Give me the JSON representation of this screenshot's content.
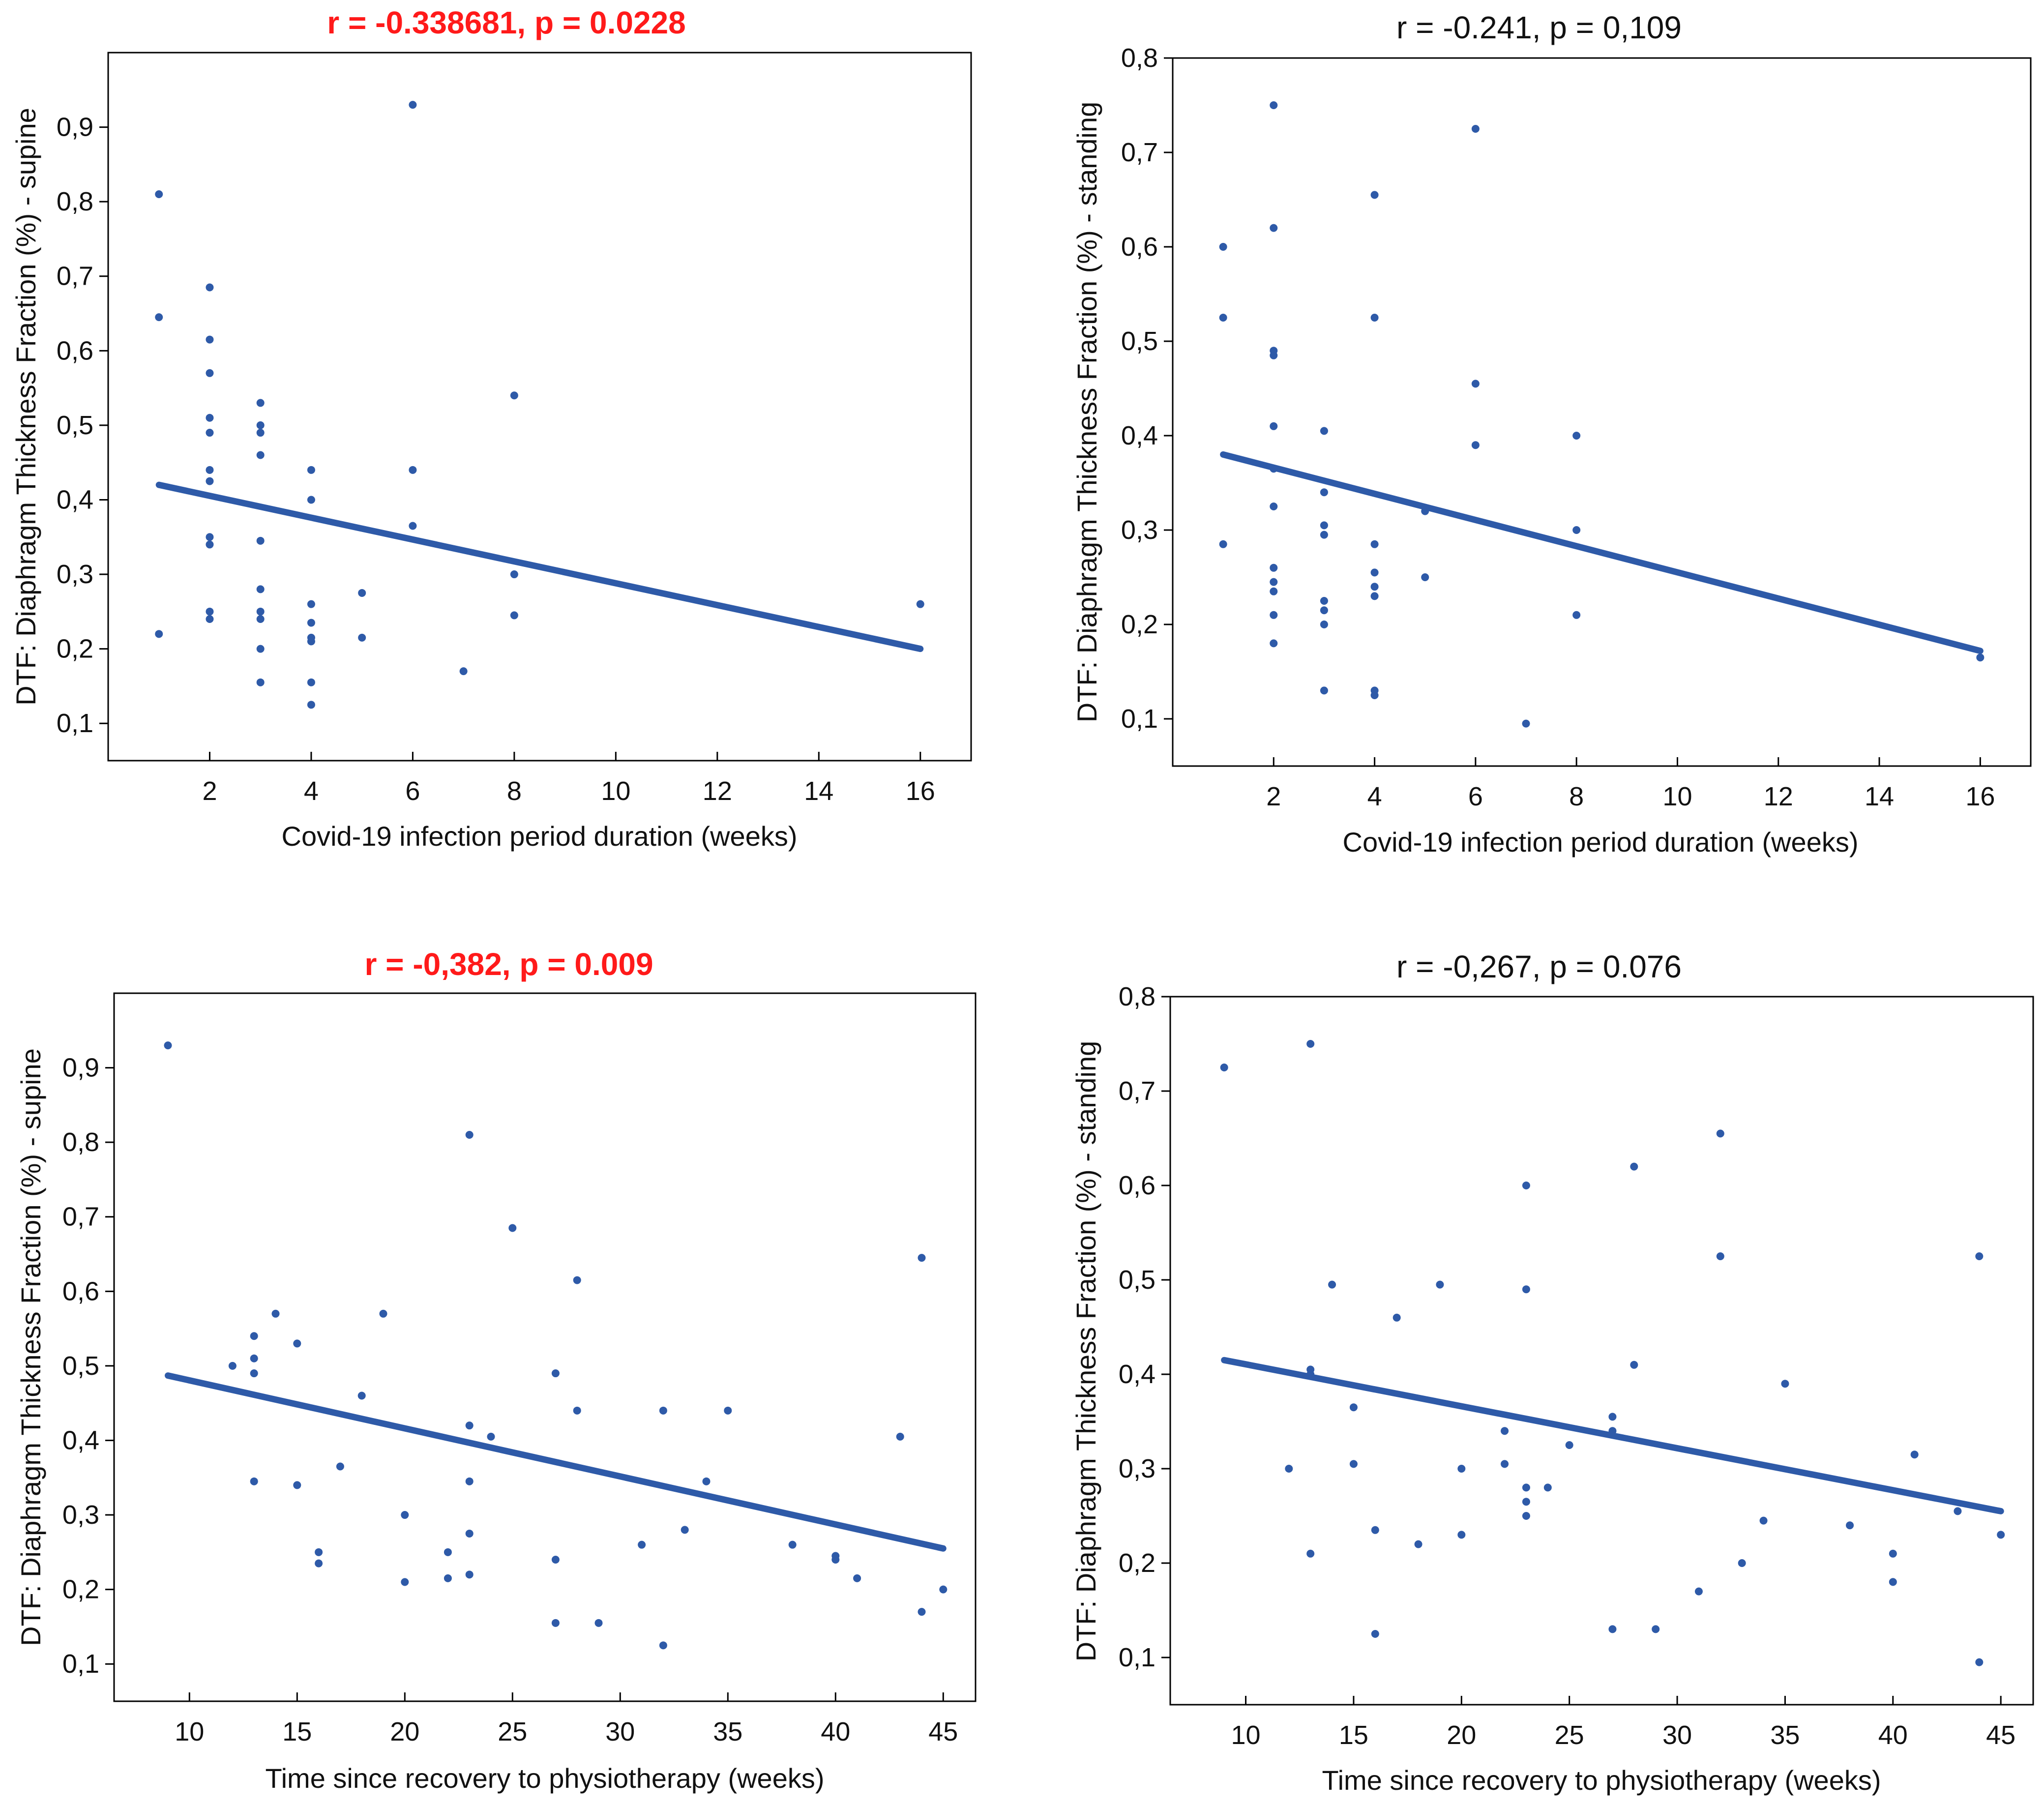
{
  "colors": {
    "points": "#2e5aa8",
    "regression": "#2e5aa8",
    "significant_title": "#ff1a1a",
    "normal_title": "#111111",
    "axes": "#000000"
  },
  "chart_data": [
    {
      "type": "scatter",
      "title": "r = -0.338681, p = 0.0228",
      "title_color": "#ff1a1a",
      "title_bold": true,
      "xlabel": "Covid-19 infection period duration (weeks)",
      "ylabel": "DTF: Diaphragm Thickness Fraction (%) - supine",
      "xlim": [
        0,
        17
      ],
      "ylim": [
        0.05,
        1.0
      ],
      "xticks": [
        2,
        4,
        6,
        8,
        10,
        12,
        14,
        16
      ],
      "xtick_labels": [
        "2",
        "4",
        "6",
        "8",
        "10",
        "12",
        "14",
        "16"
      ],
      "yticks": [
        0.1,
        0.2,
        0.3,
        0.4,
        0.5,
        0.6,
        0.7,
        0.8,
        0.9
      ],
      "ytick_labels": [
        "0,1",
        "0,2",
        "0,3",
        "0,4",
        "0,5",
        "0,6",
        "0,7",
        "0,8",
        "0,9"
      ],
      "points": [
        [
          1,
          0.81
        ],
        [
          1,
          0.645
        ],
        [
          1,
          0.22
        ],
        [
          2,
          0.685
        ],
        [
          2,
          0.615
        ],
        [
          2,
          0.57
        ],
        [
          2,
          0.51
        ],
        [
          2,
          0.49
        ],
        [
          2,
          0.44
        ],
        [
          2,
          0.425
        ],
        [
          2,
          0.35
        ],
        [
          2,
          0.34
        ],
        [
          2,
          0.25
        ],
        [
          2,
          0.24
        ],
        [
          3,
          0.53
        ],
        [
          3,
          0.5
        ],
        [
          3,
          0.49
        ],
        [
          3,
          0.46
        ],
        [
          3,
          0.345
        ],
        [
          3,
          0.28
        ],
        [
          3,
          0.25
        ],
        [
          3,
          0.24
        ],
        [
          3,
          0.2
        ],
        [
          3,
          0.155
        ],
        [
          4,
          0.44
        ],
        [
          4,
          0.4
        ],
        [
          4,
          0.26
        ],
        [
          4,
          0.235
        ],
        [
          4,
          0.215
        ],
        [
          4,
          0.21
        ],
        [
          4,
          0.155
        ],
        [
          4,
          0.125
        ],
        [
          5,
          0.275
        ],
        [
          5,
          0.215
        ],
        [
          6,
          0.93
        ],
        [
          6,
          0.44
        ],
        [
          6,
          0.365
        ],
        [
          7,
          0.17
        ],
        [
          8,
          0.54
        ],
        [
          8,
          0.3
        ],
        [
          8,
          0.245
        ],
        [
          16,
          0.26
        ]
      ],
      "regression": [
        [
          1,
          0.42
        ],
        [
          16,
          0.2
        ]
      ]
    },
    {
      "type": "scatter",
      "title": "r = -0.241, p = 0,109",
      "title_color": "#111111",
      "title_bold": false,
      "xlabel": "Covid-19 infection period duration (weeks)",
      "ylabel": "DTF: Diaphragm Thickness Fraction (%) - standing",
      "xlim": [
        0,
        17
      ],
      "ylim": [
        0.05,
        0.8
      ],
      "xticks": [
        2,
        4,
        6,
        8,
        10,
        12,
        14,
        16
      ],
      "xtick_labels": [
        "2",
        "4",
        "6",
        "8",
        "10",
        "12",
        "14",
        "16"
      ],
      "yticks": [
        0.1,
        0.2,
        0.3,
        0.4,
        0.5,
        0.6,
        0.7,
        0.8
      ],
      "ytick_labels": [
        "0,1",
        "0,2",
        "0,3",
        "0,4",
        "0,5",
        "0,6",
        "0,7",
        "0,8"
      ],
      "points": [
        [
          1,
          0.6
        ],
        [
          1,
          0.525
        ],
        [
          1,
          0.285
        ],
        [
          2,
          0.75
        ],
        [
          2,
          0.62
        ],
        [
          2,
          0.49
        ],
        [
          2,
          0.485
        ],
        [
          2,
          0.41
        ],
        [
          2,
          0.365
        ],
        [
          2,
          0.325
        ],
        [
          2,
          0.26
        ],
        [
          2,
          0.245
        ],
        [
          2,
          0.235
        ],
        [
          2,
          0.21
        ],
        [
          2,
          0.18
        ],
        [
          3,
          0.405
        ],
        [
          3,
          0.34
        ],
        [
          3,
          0.305
        ],
        [
          3,
          0.295
        ],
        [
          3,
          0.225
        ],
        [
          3,
          0.215
        ],
        [
          3,
          0.2
        ],
        [
          3,
          0.13
        ],
        [
          4,
          0.655
        ],
        [
          4,
          0.525
        ],
        [
          4,
          0.285
        ],
        [
          4,
          0.255
        ],
        [
          4,
          0.24
        ],
        [
          4,
          0.23
        ],
        [
          4,
          0.13
        ],
        [
          4,
          0.125
        ],
        [
          5,
          0.32
        ],
        [
          5,
          0.25
        ],
        [
          6,
          0.725
        ],
        [
          6,
          0.455
        ],
        [
          6,
          0.39
        ],
        [
          7,
          0.095
        ],
        [
          8,
          0.4
        ],
        [
          8,
          0.3
        ],
        [
          8,
          0.21
        ],
        [
          16,
          0.165
        ]
      ],
      "regression": [
        [
          1,
          0.38
        ],
        [
          16,
          0.172
        ]
      ]
    },
    {
      "type": "scatter",
      "title": "r = -0,382, p = 0.009",
      "title_color": "#ff1a1a",
      "title_bold": true,
      "xlabel": "Time since recovery to physiotherapy (weeks)",
      "ylabel": "DTF: Diaphragm Thickness Fraction (%) - supine",
      "xlim": [
        6.5,
        46.5
      ],
      "ylim": [
        0.05,
        1.0
      ],
      "xticks": [
        10,
        15,
        20,
        25,
        30,
        35,
        40,
        45
      ],
      "xtick_labels": [
        "10",
        "15",
        "20",
        "25",
        "30",
        "35",
        "40",
        "45"
      ],
      "yticks": [
        0.1,
        0.2,
        0.3,
        0.4,
        0.5,
        0.6,
        0.7,
        0.8,
        0.9
      ],
      "ytick_labels": [
        "0,1",
        "0,2",
        "0,3",
        "0,4",
        "0,5",
        "0,6",
        "0,7",
        "0,8",
        "0,9"
      ],
      "points": [
        [
          9,
          0.93
        ],
        [
          12,
          0.5
        ],
        [
          13,
          0.54
        ],
        [
          13,
          0.51
        ],
        [
          13,
          0.49
        ],
        [
          13,
          0.345
        ],
        [
          14,
          0.57
        ],
        [
          15,
          0.53
        ],
        [
          15,
          0.34
        ],
        [
          16,
          0.25
        ],
        [
          16,
          0.235
        ],
        [
          17,
          0.365
        ],
        [
          18,
          0.46
        ],
        [
          19,
          0.57
        ],
        [
          20,
          0.3
        ],
        [
          20,
          0.21
        ],
        [
          22,
          0.25
        ],
        [
          22,
          0.215
        ],
        [
          23,
          0.81
        ],
        [
          23,
          0.42
        ],
        [
          23,
          0.345
        ],
        [
          23,
          0.275
        ],
        [
          23,
          0.22
        ],
        [
          24,
          0.405
        ],
        [
          25,
          0.685
        ],
        [
          27,
          0.49
        ],
        [
          27,
          0.24
        ],
        [
          27,
          0.155
        ],
        [
          28,
          0.615
        ],
        [
          28,
          0.44
        ],
        [
          29,
          0.155
        ],
        [
          31,
          0.26
        ],
        [
          32,
          0.44
        ],
        [
          32,
          0.125
        ],
        [
          33,
          0.28
        ],
        [
          34,
          0.345
        ],
        [
          35,
          0.44
        ],
        [
          38,
          0.26
        ],
        [
          40,
          0.245
        ],
        [
          40,
          0.24
        ],
        [
          41,
          0.215
        ],
        [
          43,
          0.405
        ],
        [
          44,
          0.645
        ],
        [
          44,
          0.17
        ],
        [
          45,
          0.2
        ]
      ],
      "regression": [
        [
          9,
          0.487
        ],
        [
          45,
          0.255
        ]
      ]
    },
    {
      "type": "scatter",
      "title": "r = -0,267, p = 0.076",
      "title_color": "#111111",
      "title_bold": false,
      "xlabel": "Time since recovery to physiotherapy (weeks)",
      "ylabel": "DTF: Diaphragm Thickness Fraction (%) - standing",
      "xlim": [
        6.5,
        46.5
      ],
      "ylim": [
        0.05,
        0.8
      ],
      "xticks": [
        10,
        15,
        20,
        25,
        30,
        35,
        40,
        45
      ],
      "xtick_labels": [
        "10",
        "15",
        "20",
        "25",
        "30",
        "35",
        "40",
        "45"
      ],
      "yticks": [
        0.1,
        0.2,
        0.3,
        0.4,
        0.5,
        0.6,
        0.7,
        0.8
      ],
      "ytick_labels": [
        "0,1",
        "0,2",
        "0,3",
        "0,4",
        "0,5",
        "0,6",
        "0,7",
        "0,8"
      ],
      "points": [
        [
          9,
          0.725
        ],
        [
          12,
          0.3
        ],
        [
          13,
          0.75
        ],
        [
          13,
          0.405
        ],
        [
          13,
          0.4
        ],
        [
          13,
          0.21
        ],
        [
          14,
          0.495
        ],
        [
          15,
          0.365
        ],
        [
          15,
          0.305
        ],
        [
          16,
          0.235
        ],
        [
          16,
          0.125
        ],
        [
          17,
          0.46
        ],
        [
          18,
          0.22
        ],
        [
          19,
          0.495
        ],
        [
          20,
          0.3
        ],
        [
          20,
          0.23
        ],
        [
          22,
          0.34
        ],
        [
          22,
          0.305
        ],
        [
          23,
          0.6
        ],
        [
          23,
          0.49
        ],
        [
          23,
          0.28
        ],
        [
          23,
          0.265
        ],
        [
          23,
          0.25
        ],
        [
          24,
          0.28
        ],
        [
          25,
          0.325
        ],
        [
          27,
          0.355
        ],
        [
          27,
          0.34
        ],
        [
          27,
          0.13
        ],
        [
          28,
          0.62
        ],
        [
          28,
          0.41
        ],
        [
          29,
          0.13
        ],
        [
          31,
          0.17
        ],
        [
          32,
          0.655
        ],
        [
          32,
          0.525
        ],
        [
          33,
          0.2
        ],
        [
          34,
          0.245
        ],
        [
          35,
          0.39
        ],
        [
          38,
          0.24
        ],
        [
          40,
          0.21
        ],
        [
          40,
          0.18
        ],
        [
          41,
          0.315
        ],
        [
          43,
          0.255
        ],
        [
          44,
          0.525
        ],
        [
          44,
          0.095
        ],
        [
          45,
          0.23
        ]
      ],
      "regression": [
        [
          9,
          0.415
        ],
        [
          45,
          0.255
        ]
      ]
    }
  ]
}
